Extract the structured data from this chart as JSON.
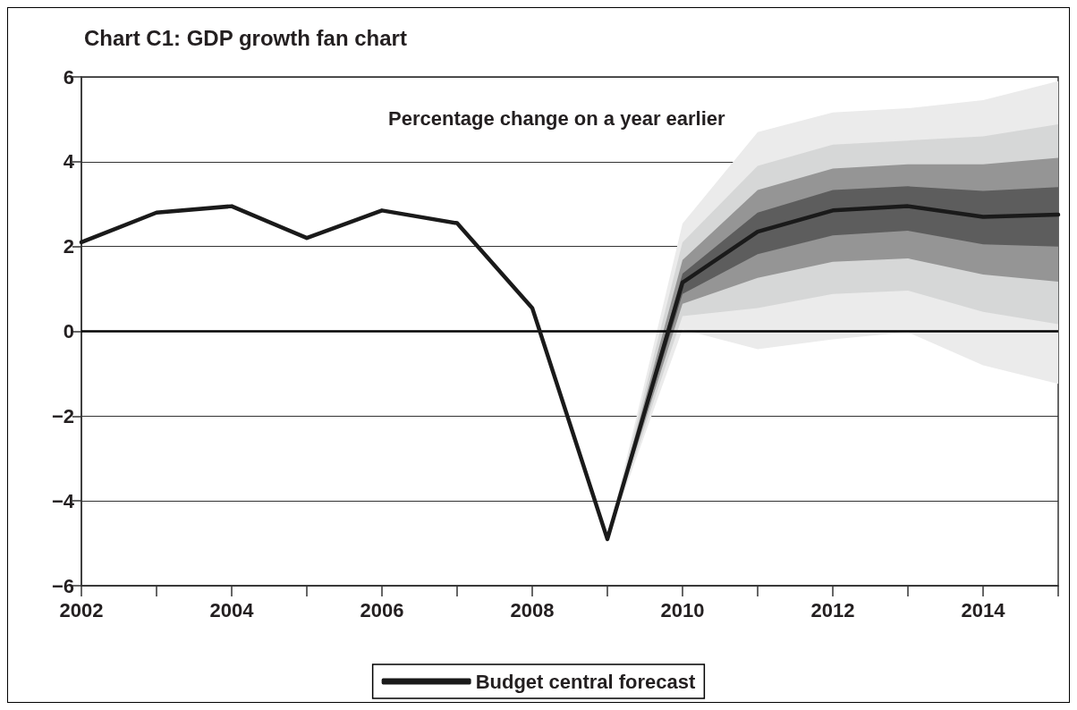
{
  "chart_data": {
    "type": "line",
    "title": "Chart C1: GDP growth fan chart",
    "annotations": [
      "Percentage change on a year earlier"
    ],
    "xlim": [
      2002,
      2015
    ],
    "xticks": [
      2002,
      {
        "value": 2003,
        "label": null
      },
      2004,
      {
        "value": 2005,
        "label": null
      },
      2006,
      {
        "value": 2007,
        "label": null
      },
      2008,
      {
        "value": 2009,
        "label": null
      },
      2010,
      {
        "value": 2011,
        "label": null
      },
      2012,
      {
        "value": 2013,
        "label": null
      },
      2014,
      {
        "value": 2015,
        "label": null
      }
    ],
    "ylim": [
      -6,
      6
    ],
    "yticks": [
      {
        "value": -6,
        "label": "−6"
      },
      {
        "value": -4,
        "label": "−4"
      },
      {
        "value": -2,
        "label": "−2"
      },
      0,
      2,
      4,
      6
    ],
    "grid": "y",
    "legend": "bottom",
    "marker": "none",
    "line_style": "solid",
    "ref_lines": [
      {
        "axis": "y",
        "value": 0,
        "color": "#000000"
      }
    ],
    "series": [
      {
        "type": "area",
        "color": "#ebebeb",
        "x": [
          2009,
          2010,
          2011,
          2012,
          2013,
          2014,
          2015
        ],
        "values": [
          null,
          null,
          null,
          null,
          null,
          null,
          null
        ],
        "lower": [
          -4.9,
          0.04,
          -0.42,
          -0.19,
          -0.02,
          -0.8,
          -1.24
        ],
        "upper": [
          -4.9,
          2.54,
          4.7,
          5.16,
          5.26,
          5.45,
          5.9
        ]
      },
      {
        "type": "area",
        "color": "#d6d7d7",
        "x": [
          2009,
          2010,
          2011,
          2012,
          2013,
          2014,
          2015
        ],
        "values": [
          null,
          null,
          null,
          null,
          null,
          null,
          null
        ],
        "lower": [
          -4.9,
          0.36,
          0.55,
          0.88,
          0.96,
          0.46,
          0.17
        ],
        "upper": [
          -4.9,
          2.1,
          3.9,
          4.4,
          4.5,
          4.6,
          4.88
        ]
      },
      {
        "type": "area",
        "color": "#959595",
        "x": [
          2009,
          2010,
          2011,
          2012,
          2013,
          2014,
          2015
        ],
        "values": [
          null,
          null,
          null,
          null,
          null,
          null,
          null
        ],
        "lower": [
          -4.9,
          0.65,
          1.26,
          1.64,
          1.72,
          1.34,
          1.17
        ],
        "upper": [
          -4.9,
          1.68,
          3.33,
          3.84,
          3.94,
          3.94,
          4.09
        ]
      },
      {
        "type": "area",
        "color": "#5d5d5d",
        "x": [
          2009,
          2010,
          2011,
          2012,
          2013,
          2014,
          2015
        ],
        "values": [
          null,
          null,
          null,
          null,
          null,
          null,
          null
        ],
        "lower": [
          -4.9,
          0.88,
          1.82,
          2.26,
          2.37,
          2.05,
          2.0
        ],
        "upper": [
          -4.9,
          1.36,
          2.8,
          3.33,
          3.42,
          3.31,
          3.4
        ]
      },
      {
        "name": "Budget central forecast",
        "color": "#1a1a1a",
        "x": [
          2002,
          2003,
          2004,
          2005,
          2006,
          2007,
          2008,
          2009,
          2010,
          2011,
          2012,
          2013,
          2014,
          2015
        ],
        "values": [
          2.1,
          2.8,
          2.95,
          2.2,
          2.85,
          2.55,
          0.55,
          -4.9,
          1.15,
          2.35,
          2.85,
          2.95,
          2.7,
          2.75
        ]
      }
    ]
  }
}
